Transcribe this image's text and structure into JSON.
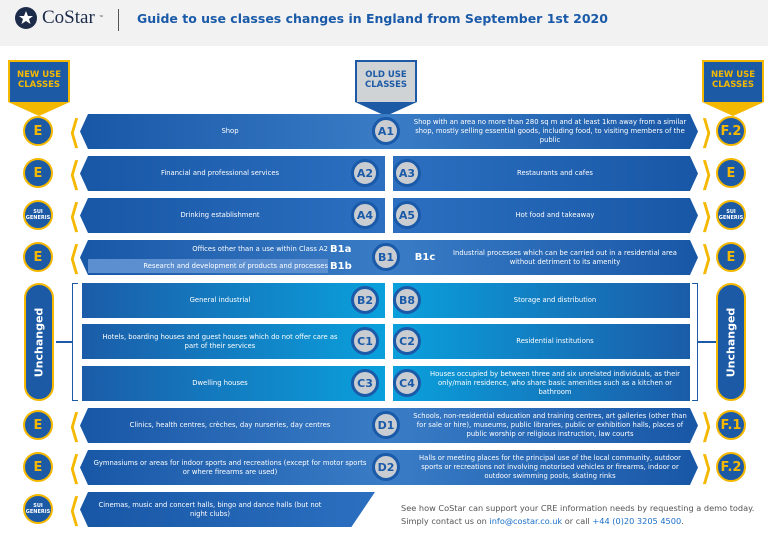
{
  "header": {
    "logo": "CoStar",
    "logo_tm": "™",
    "title": "Guide to use classes changes in England from September 1st 2020"
  },
  "flags": {
    "new_left": "NEW USE CLASSES",
    "old": "OLD USE CLASSES",
    "new_right": "NEW USE CLASSES"
  },
  "rows": [
    {
      "type": "full",
      "left_badge": "E",
      "left": "Shop",
      "code": "A1",
      "right": "Shop with an area no more than 280 sq m and at least 1km away from a similar shop, mostly selling essential goods, including food, to visiting members of the public",
      "right_badge": "F.2"
    },
    {
      "type": "split",
      "left_badge": "E",
      "left": "Financial and professional services",
      "lcode": "A2",
      "rcode": "A3",
      "right": "Restaurants and cafes",
      "right_badge": "E"
    },
    {
      "type": "split",
      "left_badge": "SUI GENERIS",
      "left": "Drinking establishment",
      "lcode": "A4",
      "rcode": "A5",
      "right": "Hot food and takeaway",
      "right_badge": "SUI GENERIS"
    },
    {
      "type": "b1",
      "left_badge": "E",
      "sub": [
        {
          "text": "Offices other than a use within Class A2",
          "code": "B1a"
        },
        {
          "text": "Research and development of products and processes",
          "code": "B1b"
        }
      ],
      "code": "B1",
      "rsub": "B1c",
      "right": "Industrial processes which can be carried out in a residential area without detriment to its amenity",
      "right_badge": "E"
    },
    {
      "type": "unch",
      "left": "General industrial",
      "lcode": "B2",
      "rcode": "B8",
      "right": "Storage and distribution"
    },
    {
      "type": "unch",
      "left": "Hotels, boarding houses and guest houses which do not offer care as part of their services",
      "lcode": "C1",
      "rcode": "C2",
      "right": "Residential institutions"
    },
    {
      "type": "unch",
      "left": "Dwelling houses",
      "lcode": "C3",
      "rcode": "C4",
      "right": "Houses occupied by between three and six unrelated individuals, as their only/main residence, who share basic amenities such as a kitchen or bathroom"
    },
    {
      "type": "full",
      "left_badge": "E",
      "left": "Clinics, health centres, crèches, day nurseries, day centres",
      "code": "D1",
      "right": "Schools, non-residential education and training centres, art galleries (other than for sale or hire), museums, public libraries, public or exhibition halls, places of public worship or religious instruction, law courts",
      "right_badge": "F.1"
    },
    {
      "type": "full",
      "left_badge": "E",
      "left": "Gymnasiums or areas for indoor sports and recreations (except for motor sports or where firearms are used)",
      "code": "D2",
      "right": "Halls or meeting places for the principal use of the local community, outdoor sports or recreations not involving motorised vehicles or firearms, indoor or outdoor swimming pools, skating rinks",
      "right_badge": "F.2"
    },
    {
      "type": "leftonly",
      "left_badge": "SUI GENERIS",
      "left": "Cinemas, music and concert halls, bingo and dance halls (but not night clubs)"
    }
  ],
  "unchanged_label": "Unchanged",
  "footer": {
    "text1": "See how CoStar can support your CRE information needs by requesting a demo today. Simply contact us on ",
    "email": "info@costar.co.uk",
    "text2": " or call ",
    "phone": "+44 (0)20 3205 4500",
    "text3": "."
  },
  "colors": {
    "blue": "#1d5aa6",
    "gold": "#f5b800",
    "cyan": "#0aa0dc",
    "grey": "#c9cdd1"
  }
}
